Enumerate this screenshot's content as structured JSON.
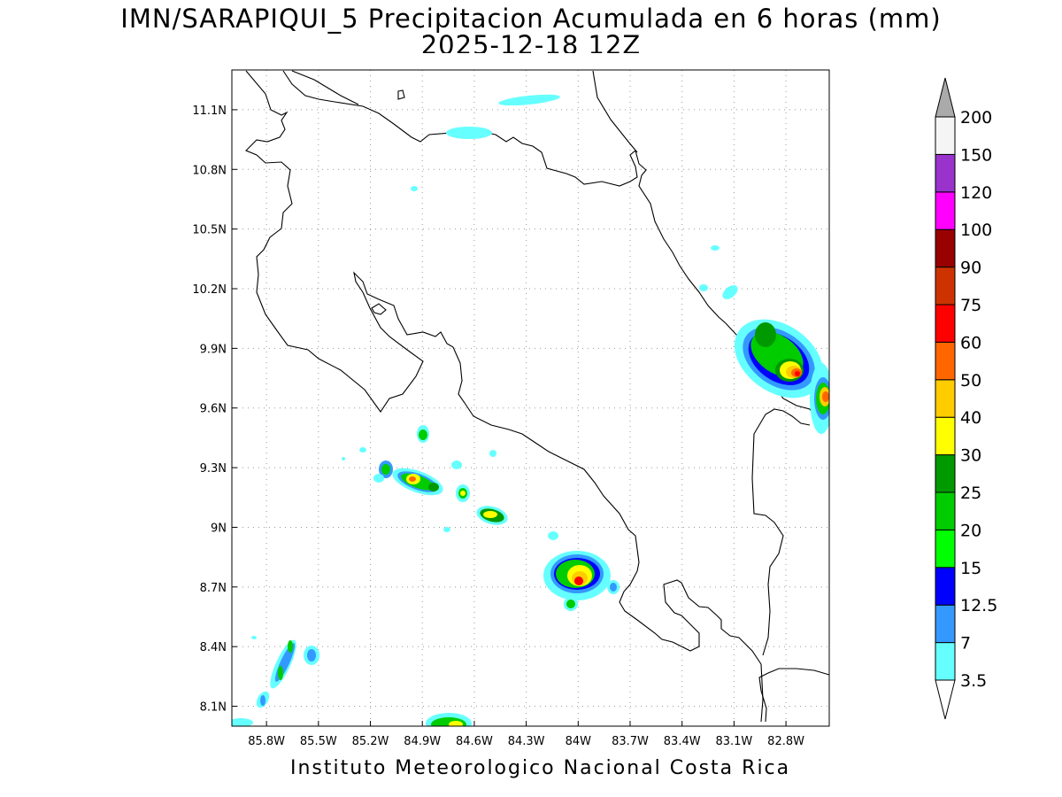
{
  "title": {
    "line1": "IMN/SARAPIQUI_5 Precipitacion Acumulada en 6 horas (mm)",
    "line2": "2025-12-18 12Z"
  },
  "footer": "Instituto Meteorologico Nacional Costa Rica",
  "map": {
    "lon_range": [
      -86.0,
      -82.55
    ],
    "lat_range": [
      8.0,
      11.3
    ],
    "x_ticks": [
      "85.8W",
      "85.5W",
      "85.2W",
      "84.9W",
      "84.6W",
      "84.3W",
      "84W",
      "83.7W",
      "83.4W",
      "83.1W",
      "82.8W"
    ],
    "y_ticks": [
      "11.1N",
      "10.8N",
      "10.5N",
      "10.2N",
      "9.9N",
      "9.6N",
      "9.3N",
      "9N",
      "8.7N",
      "8.4N",
      "8.1N"
    ],
    "grid": "dotted"
  },
  "colorbar": {
    "labels": [
      "3.5",
      "7",
      "12.5",
      "15",
      "20",
      "25",
      "30",
      "40",
      "50",
      "60",
      "75",
      "90",
      "100",
      "120",
      "150",
      "200"
    ],
    "colors": [
      "#66ffff",
      "#3399ff",
      "#0000ff",
      "#00ff00",
      "#00cc00",
      "#009900",
      "#ffff00",
      "#ffcc00",
      "#ff6600",
      "#ff0000",
      "#cc3300",
      "#990000",
      "#ff00ff",
      "#9933cc",
      "#f5f5f5"
    ],
    "under_color": "#ffffff",
    "over_color": "#aaaaaa"
  }
}
